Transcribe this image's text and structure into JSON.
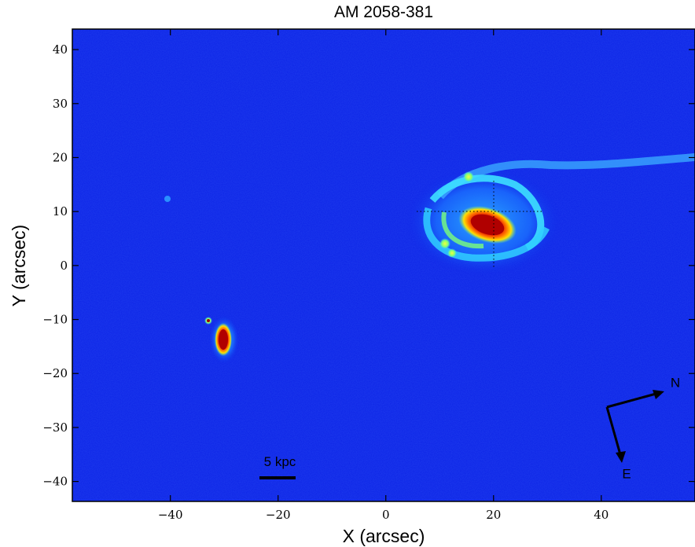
{
  "chart_data": {
    "type": "image",
    "title": "AM 2058-381",
    "xlabel": "X (arcsec)",
    "ylabel": "Y (arcsec)",
    "xlim": [
      -58.2,
      57.4
    ],
    "ylim": [
      -43.7,
      43.8
    ],
    "xticks": [
      {
        "value": -40,
        "label": "−40"
      },
      {
        "value": -20,
        "label": "−20"
      },
      0,
      20,
      40
    ],
    "yticks": [
      40,
      30,
      20,
      10,
      0,
      {
        "value": -10,
        "label": "−10"
      },
      {
        "value": -20,
        "label": "−20"
      },
      {
        "value": -30,
        "label": "−30"
      },
      {
        "value": -40,
        "label": "−40"
      }
    ],
    "annotations": {
      "scale_bar": "5 kpc",
      "north": "N",
      "east": "E"
    }
  }
}
